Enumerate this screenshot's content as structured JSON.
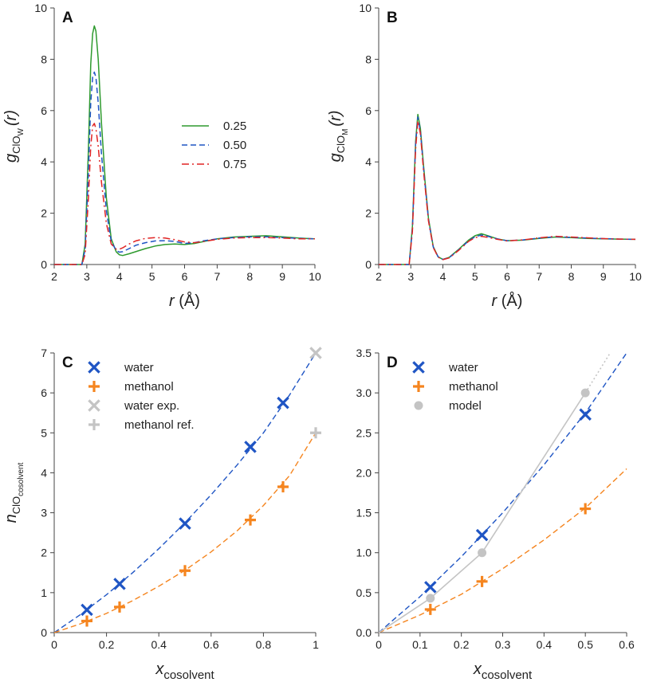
{
  "colors": {
    "green": "#2e9a2e",
    "blue": "#1f55c4",
    "red": "#e02424",
    "orange": "#f5851f",
    "gray": "#c4c4c4",
    "axis": "#444444"
  },
  "chart_data": [
    {
      "id": "A",
      "panel_label": "A",
      "type": "line",
      "xlabel_main": "r",
      "xlabel_unit": "(Å)",
      "ylabel_main": "g",
      "ylabel_sub": "ClO",
      "ylabel_subsub": "W",
      "ylabel_arg": "(r)",
      "xlim": [
        2,
        10
      ],
      "ylim": [
        0,
        10
      ],
      "xticks": [
        2,
        3,
        4,
        5,
        6,
        7,
        8,
        9,
        10
      ],
      "yticks": [
        0,
        2,
        4,
        6,
        8,
        10
      ],
      "ytick_labels": [
        "0",
        "2",
        "4",
        "6",
        "8",
        "10"
      ],
      "legend": [
        {
          "label": "0.25",
          "style": "solid",
          "color": "green"
        },
        {
          "label": "0.50",
          "style": "dash",
          "color": "blue"
        },
        {
          "label": "0.75",
          "style": "dashdot",
          "color": "red"
        }
      ],
      "series": [
        {
          "name": "0.25",
          "color": "green",
          "style": "solid",
          "x": [
            2.0,
            2.85,
            2.95,
            3.05,
            3.12,
            3.18,
            3.23,
            3.28,
            3.35,
            3.45,
            3.6,
            3.75,
            3.9,
            4.0,
            4.1,
            4.3,
            4.5,
            4.8,
            5.1,
            5.4,
            5.7,
            6.0,
            6.3,
            6.6,
            7.0,
            7.5,
            8.0,
            8.5,
            9.0,
            9.5,
            10.0
          ],
          "y": [
            0,
            0,
            0.8,
            4.5,
            7.8,
            9.0,
            9.3,
            9.1,
            8.0,
            5.5,
            2.6,
            1.0,
            0.5,
            0.38,
            0.35,
            0.42,
            0.5,
            0.62,
            0.72,
            0.78,
            0.8,
            0.78,
            0.82,
            0.9,
            1.0,
            1.07,
            1.1,
            1.12,
            1.08,
            1.03,
            1.0
          ]
        },
        {
          "name": "0.50",
          "color": "blue",
          "style": "dash",
          "x": [
            2.0,
            2.85,
            2.95,
            3.05,
            3.12,
            3.18,
            3.23,
            3.28,
            3.35,
            3.45,
            3.6,
            3.75,
            3.9,
            4.0,
            4.1,
            4.3,
            4.5,
            4.8,
            5.1,
            5.4,
            5.7,
            6.0,
            6.3,
            6.6,
            7.0,
            7.5,
            8.0,
            8.5,
            9.0,
            9.5,
            10.0
          ],
          "y": [
            0,
            0,
            0.6,
            3.6,
            6.3,
            7.3,
            7.5,
            7.3,
            6.3,
            4.3,
            2.1,
            0.9,
            0.55,
            0.48,
            0.5,
            0.62,
            0.75,
            0.85,
            0.92,
            0.93,
            0.9,
            0.82,
            0.85,
            0.93,
            1.0,
            1.05,
            1.08,
            1.08,
            1.05,
            1.02,
            1.0
          ]
        },
        {
          "name": "0.75",
          "color": "red",
          "style": "dashdot",
          "x": [
            2.0,
            2.85,
            2.95,
            3.05,
            3.12,
            3.18,
            3.23,
            3.28,
            3.35,
            3.45,
            3.6,
            3.75,
            3.9,
            4.0,
            4.1,
            4.3,
            4.5,
            4.8,
            5.1,
            5.4,
            5.7,
            6.0,
            6.3,
            6.6,
            7.0,
            7.5,
            8.0,
            8.5,
            9.0,
            9.5,
            10.0
          ],
          "y": [
            0,
            0,
            0.4,
            2.6,
            4.6,
            5.4,
            5.5,
            5.3,
            4.6,
            3.2,
            1.6,
            0.8,
            0.6,
            0.6,
            0.65,
            0.8,
            0.92,
            1.02,
            1.05,
            1.03,
            0.97,
            0.88,
            0.85,
            0.9,
            0.98,
            1.03,
            1.05,
            1.05,
            1.03,
            1.0,
            1.0
          ]
        }
      ]
    },
    {
      "id": "B",
      "panel_label": "B",
      "type": "line",
      "xlabel_main": "r",
      "xlabel_unit": "(Å)",
      "ylabel_main": "g",
      "ylabel_sub": "ClO",
      "ylabel_subsub": "M",
      "ylabel_arg": "(r)",
      "xlim": [
        2,
        10
      ],
      "ylim": [
        0,
        10
      ],
      "xticks": [
        2,
        3,
        4,
        5,
        6,
        7,
        8,
        9,
        10
      ],
      "yticks": [
        0,
        2,
        4,
        6,
        8,
        10
      ],
      "ytick_labels": [
        "0",
        "2",
        "4",
        "6",
        "8",
        "10"
      ],
      "legend": [],
      "series": [
        {
          "name": "0.25",
          "color": "green",
          "style": "solid",
          "x": [
            2.0,
            2.95,
            3.05,
            3.15,
            3.22,
            3.3,
            3.4,
            3.55,
            3.7,
            3.85,
            4.0,
            4.2,
            4.5,
            4.8,
            5.0,
            5.2,
            5.4,
            5.7,
            6.0,
            6.5,
            7.0,
            7.5,
            8.0,
            8.5,
            9.0,
            9.5,
            10.0
          ],
          "y": [
            0,
            0,
            1.5,
            4.8,
            5.85,
            5.3,
            3.8,
            1.8,
            0.7,
            0.3,
            0.2,
            0.28,
            0.6,
            0.95,
            1.12,
            1.2,
            1.12,
            1.0,
            0.93,
            0.95,
            1.02,
            1.07,
            1.05,
            1.02,
            1.0,
            0.99,
            0.98
          ]
        },
        {
          "name": "0.50",
          "color": "blue",
          "style": "dash",
          "x": [
            2.0,
            2.95,
            3.05,
            3.15,
            3.22,
            3.3,
            3.4,
            3.55,
            3.7,
            3.85,
            4.0,
            4.2,
            4.5,
            4.8,
            5.0,
            5.2,
            5.4,
            5.7,
            6.0,
            6.5,
            7.0,
            7.5,
            8.0,
            8.5,
            9.0,
            9.5,
            10.0
          ],
          "y": [
            0,
            0,
            1.4,
            4.7,
            5.75,
            5.2,
            3.7,
            1.75,
            0.68,
            0.3,
            0.2,
            0.27,
            0.58,
            0.92,
            1.08,
            1.15,
            1.1,
            1.0,
            0.93,
            0.96,
            1.03,
            1.08,
            1.06,
            1.03,
            1.01,
            0.99,
            0.98
          ]
        },
        {
          "name": "0.75",
          "color": "red",
          "style": "dashdot",
          "x": [
            2.0,
            2.95,
            3.05,
            3.15,
            3.22,
            3.3,
            3.4,
            3.55,
            3.7,
            3.85,
            4.0,
            4.2,
            4.5,
            4.8,
            5.0,
            5.2,
            5.4,
            5.7,
            6.0,
            6.5,
            7.0,
            7.5,
            8.0,
            8.5,
            9.0,
            9.5,
            10.0
          ],
          "y": [
            0,
            0,
            1.3,
            4.5,
            5.6,
            5.1,
            3.6,
            1.7,
            0.66,
            0.29,
            0.19,
            0.26,
            0.56,
            0.9,
            1.05,
            1.1,
            1.06,
            0.98,
            0.92,
            0.96,
            1.04,
            1.1,
            1.07,
            1.04,
            1.01,
            0.99,
            0.98
          ]
        }
      ]
    },
    {
      "id": "C",
      "panel_label": "C",
      "type": "scatter",
      "xlabel_main": "x",
      "xlabel_sub": "cosolvent",
      "ylabel_main": "n",
      "ylabel_sub": "ClO",
      "ylabel_subsub": "cosolvent",
      "xlim": [
        0,
        1
      ],
      "ylim": [
        0,
        7
      ],
      "xticks": [
        0,
        0.2,
        0.4,
        0.6,
        0.8,
        1
      ],
      "xtick_labels": [
        "0",
        "0.2",
        "0.4",
        "0.6",
        "0.8",
        "1"
      ],
      "yticks": [
        0,
        1,
        2,
        3,
        4,
        5,
        6,
        7
      ],
      "ytick_labels": [
        "0",
        "1",
        "2",
        "3",
        "4",
        "5",
        "6",
        "7"
      ],
      "legend": [
        {
          "label": "water",
          "marker": "x",
          "color": "blue"
        },
        {
          "label": "methanol",
          "marker": "plus",
          "color": "orange"
        },
        {
          "label": "water exp.",
          "marker": "x",
          "color": "gray"
        },
        {
          "label": "methanol ref.",
          "marker": "plus",
          "color": "gray"
        }
      ],
      "series": [
        {
          "name": "water",
          "marker": "x",
          "color": "blue",
          "x": [
            0.125,
            0.25,
            0.5,
            0.75,
            0.875
          ],
          "y": [
            0.57,
            1.22,
            2.73,
            4.65,
            5.75
          ]
        },
        {
          "name": "methanol",
          "marker": "plus",
          "color": "orange",
          "x": [
            0.125,
            0.25,
            0.5,
            0.75,
            0.875
          ],
          "y": [
            0.29,
            0.64,
            1.55,
            2.82,
            3.65
          ]
        },
        {
          "name": "water exp.",
          "marker": "x",
          "color": "gray",
          "x": [
            1.0
          ],
          "y": [
            7.0
          ]
        },
        {
          "name": "methanol ref.",
          "marker": "plus",
          "color": "gray",
          "x": [
            1.0
          ],
          "y": [
            5.0
          ]
        }
      ],
      "fits": [
        {
          "color": "blue",
          "style": "dash",
          "x": [
            0,
            0.1,
            0.2,
            0.3,
            0.4,
            0.5,
            0.6,
            0.7,
            0.8,
            0.9,
            1.0
          ],
          "y": [
            0,
            0.45,
            0.95,
            1.5,
            2.1,
            2.75,
            3.45,
            4.2,
            5.0,
            5.95,
            7.0
          ]
        },
        {
          "color": "orange",
          "style": "dash",
          "x": [
            0,
            0.1,
            0.2,
            0.3,
            0.4,
            0.5,
            0.6,
            0.7,
            0.8,
            0.9,
            1.0
          ],
          "y": [
            0,
            0.22,
            0.48,
            0.8,
            1.16,
            1.56,
            2.02,
            2.55,
            3.18,
            3.93,
            5.0
          ]
        }
      ]
    },
    {
      "id": "D",
      "panel_label": "D",
      "type": "scatter",
      "xlabel_main": "x",
      "xlabel_sub": "cosolvent",
      "xlim": [
        0,
        0.6
      ],
      "ylim": [
        0,
        3.5
      ],
      "xticks": [
        0,
        0.1,
        0.2,
        0.3,
        0.4,
        0.5,
        0.6
      ],
      "xtick_labels": [
        "0",
        "0.1",
        "0.2",
        "0.3",
        "0.4",
        "0.5",
        "0.6"
      ],
      "yticks": [
        0,
        0.5,
        1,
        1.5,
        2,
        2.5,
        3,
        3.5
      ],
      "ytick_labels": [
        "0.0",
        "0.5",
        "1.0",
        "1.5",
        "2.0",
        "2.5",
        "3.0",
        "3.5"
      ],
      "legend": [
        {
          "label": "water",
          "marker": "x",
          "color": "blue"
        },
        {
          "label": "methanol",
          "marker": "plus",
          "color": "orange"
        },
        {
          "label": "model",
          "marker": "dot",
          "color": "gray"
        }
      ],
      "series": [
        {
          "name": "water",
          "marker": "x",
          "color": "blue",
          "x": [
            0.125,
            0.25,
            0.5
          ],
          "y": [
            0.57,
            1.22,
            2.73
          ]
        },
        {
          "name": "methanol",
          "marker": "plus",
          "color": "orange",
          "x": [
            0.125,
            0.25,
            0.5
          ],
          "y": [
            0.29,
            0.64,
            1.55
          ]
        },
        {
          "name": "model",
          "marker": "dot",
          "color": "gray",
          "x": [
            0.125,
            0.25,
            0.5
          ],
          "y": [
            0.43,
            1.0,
            3.0
          ]
        }
      ],
      "fits": [
        {
          "color": "blue",
          "style": "dash",
          "x": [
            0,
            0.1,
            0.2,
            0.3,
            0.4,
            0.5,
            0.6
          ],
          "y": [
            0,
            0.45,
            0.95,
            1.5,
            2.1,
            2.75,
            3.5
          ]
        },
        {
          "color": "orange",
          "style": "dash",
          "x": [
            0,
            0.1,
            0.2,
            0.3,
            0.4,
            0.5,
            0.6
          ],
          "y": [
            0,
            0.22,
            0.48,
            0.8,
            1.16,
            1.56,
            2.05
          ]
        },
        {
          "color": "gray",
          "style": "solid",
          "x": [
            0,
            0.125,
            0.25,
            0.5
          ],
          "y": [
            0,
            0.43,
            1.0,
            3.0
          ]
        },
        {
          "color": "gray",
          "style": "dot",
          "x": [
            0.5,
            0.56
          ],
          "y": [
            3.0,
            3.5
          ]
        }
      ]
    }
  ]
}
